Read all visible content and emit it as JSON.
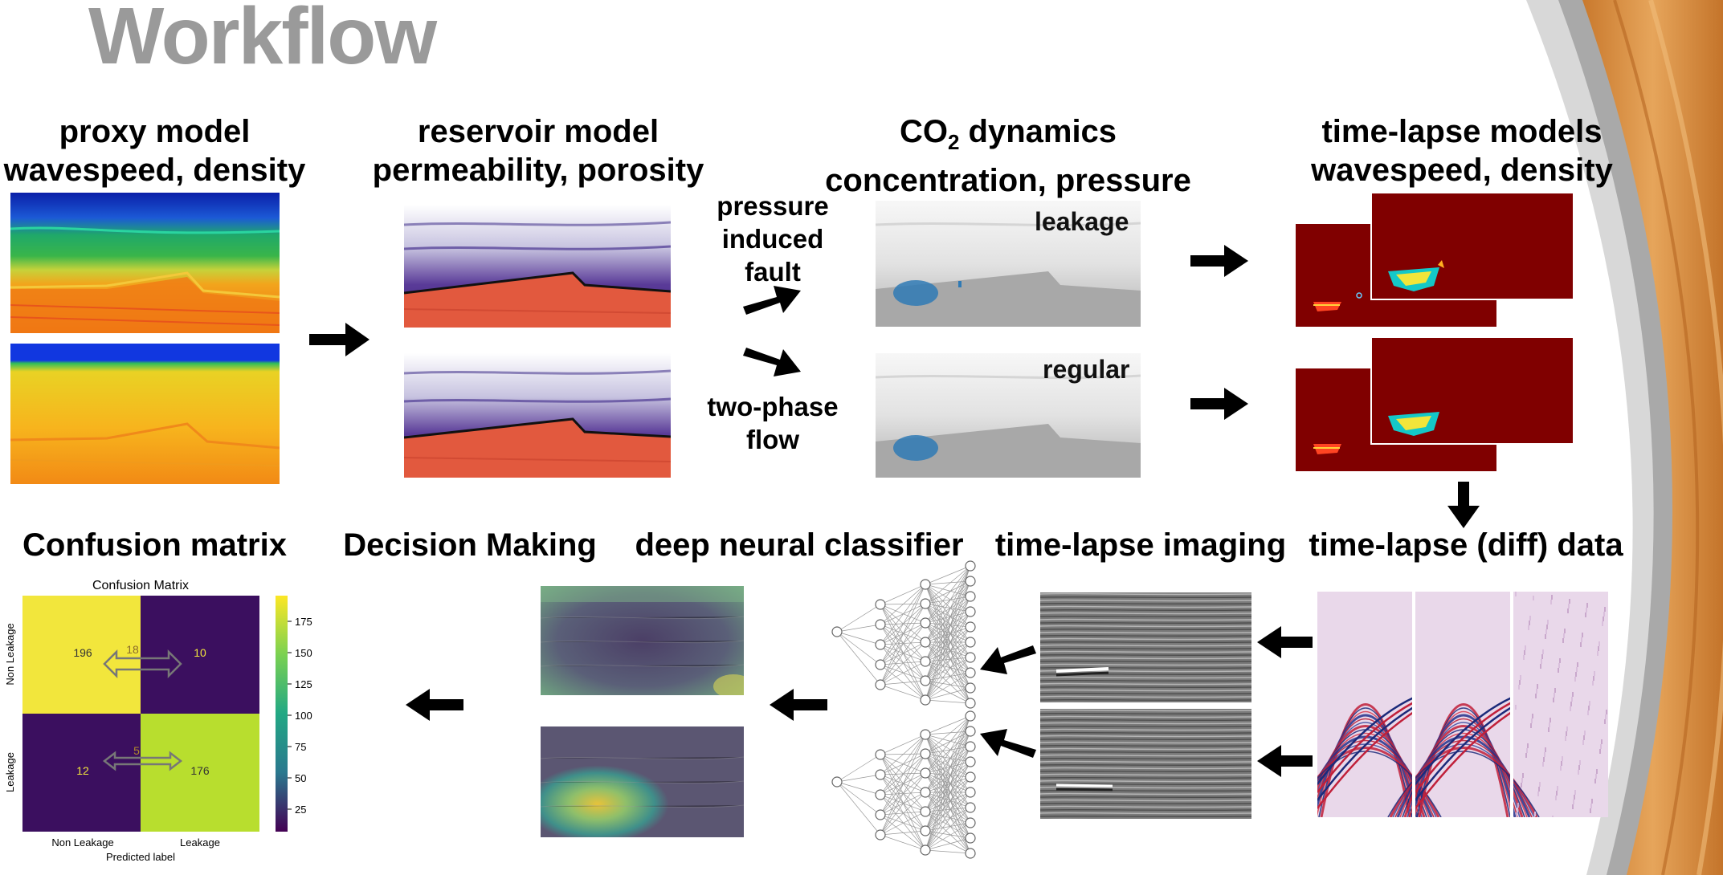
{
  "slide": {
    "title": "Workflow"
  },
  "stages": {
    "proxy": {
      "line1": "proxy model",
      "line2": "wavespeed, density"
    },
    "reservoir": {
      "line1": "reservoir model",
      "line2": "permeability, porosity"
    },
    "co2": {
      "line1_prefix": "CO",
      "line1_sub": "2",
      "line1_rest": " dynamics",
      "line2": "concentration, pressure"
    },
    "timelapse_models": {
      "line1": "time-lapse models",
      "line2": "wavespeed, density"
    },
    "confusion": {
      "line1": "Confusion matrix"
    },
    "decision": {
      "line1": "Decision Making"
    },
    "classifier": {
      "line1": "deep neural classifier"
    },
    "imaging": {
      "line1": "time-lapse imaging"
    },
    "diff_data": {
      "line1": "time-lapse (diff) data"
    }
  },
  "side_labels": {
    "fault": [
      "pressure",
      "induced",
      "fault"
    ],
    "flow": [
      "two-phase",
      "flow"
    ]
  },
  "tags": {
    "leakage": "leakage",
    "regular": "regular"
  },
  "confusion_matrix": {
    "title": "Confusion Matrix",
    "xlabel": "Predicted label",
    "x_ticks": [
      "Non Leakage",
      "Leakage"
    ],
    "y_ticks": [
      "Non Leakage",
      "Leakage"
    ],
    "cells": {
      "tn": "196",
      "fp": "10",
      "fn": "12",
      "tp": "176"
    },
    "arrow_labels": {
      "top": "18",
      "bottom": "5"
    },
    "colorbar_ticks": [
      "175",
      "150",
      "125",
      "100",
      "75",
      "50",
      "25"
    ],
    "colors": {
      "high": "#f2e63c",
      "mid": "#b8de2e",
      "low": "#3b0f5f"
    }
  },
  "colors": {
    "title_gray": "#9a9a9a",
    "reservoir_red": "#e2593e",
    "co2_blue": "#2f7ab5",
    "time_lapse_red": "#800000",
    "arrow": "#000000"
  }
}
